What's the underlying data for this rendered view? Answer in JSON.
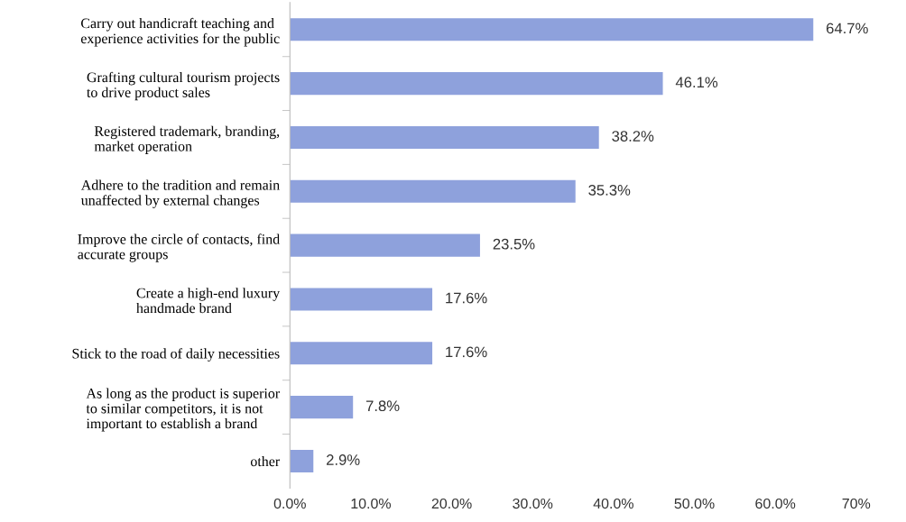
{
  "chart_data": {
    "type": "bar",
    "orientation": "horizontal",
    "categories": [
      "Carry out handicraft teaching and\nexperience activities for the public",
      "Grafting cultural tourism projects\nto drive product sales",
      "Registered trademark, branding,\nmarket operation",
      "Adhere to the tradition and remain\nunaffected by external changes",
      "Improve the circle of contacts, find\naccurate groups",
      "Create a high-end luxury\nhandmade brand",
      "Stick to the road of daily necessities",
      "As long as the product is superior\nto similar competitors, it is not\nimportant to establish a brand",
      "other"
    ],
    "values": [
      64.7,
      46.1,
      38.2,
      35.3,
      23.5,
      17.6,
      17.6,
      7.8,
      2.9
    ],
    "value_labels": [
      "64.7%",
      "46.1%",
      "38.2%",
      "35.3%",
      "23.5%",
      "17.6%",
      "17.6%",
      "7.8%",
      "2.9%"
    ],
    "color": "#8ea1dc",
    "xlim": [
      0,
      70
    ],
    "xticks": [
      {
        "value": 0,
        "label": "0.0%"
      },
      {
        "value": 10,
        "label": "10.0%"
      },
      {
        "value": 20,
        "label": "20.0%"
      },
      {
        "value": 30,
        "label": "30.0%"
      },
      {
        "value": 40,
        "label": "40.0%"
      },
      {
        "value": 50,
        "label": "50.0%"
      },
      {
        "value": 60,
        "label": "60.0%"
      },
      {
        "value": 70,
        "label": "70%"
      }
    ],
    "grid": false,
    "legend": false
  }
}
